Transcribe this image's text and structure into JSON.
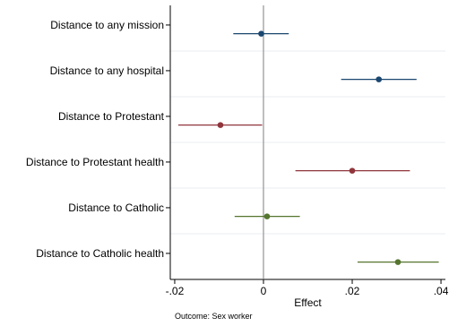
{
  "chart_data": {
    "type": "coefficient-plot",
    "orientation": "horizontal",
    "xlabel": "Effect",
    "note": "Outcome: Sex worker",
    "xlim": [
      -0.021,
      0.041
    ],
    "xticks": [
      -0.02,
      0,
      0.02,
      0.04
    ],
    "xtick_labels": [
      "-.02",
      "0",
      ".02",
      ".04"
    ],
    "zero_line": 0,
    "grid": true,
    "categories": [
      "Distance to any mission",
      "Distance to any hospital",
      "Distance to Protestant",
      "Distance to Protestant health",
      "Distance to Catholic",
      "Distance to Catholic health"
    ],
    "estimates": [
      {
        "category": "Distance to any mission",
        "value": -0.0005,
        "ci": [
          -0.0068,
          0.0057
        ],
        "color": "#1a476f"
      },
      {
        "category": "Distance to any hospital",
        "value": 0.026,
        "ci": [
          0.0175,
          0.0345
        ],
        "color": "#1a476f"
      },
      {
        "category": "Distance to Protestant",
        "value": -0.0097,
        "ci": [
          -0.0192,
          -0.0003
        ],
        "color": "#90353b"
      },
      {
        "category": "Distance to Protestant health",
        "value": 0.02,
        "ci": [
          0.0072,
          0.033
        ],
        "color": "#90353b"
      },
      {
        "category": "Distance to Catholic",
        "value": 0.0008,
        "ci": [
          -0.0065,
          0.0082
        ],
        "color": "#55752f"
      },
      {
        "category": "Distance to Catholic health",
        "value": 0.0303,
        "ci": [
          0.0212,
          0.0395
        ],
        "color": "#55752f"
      }
    ]
  }
}
